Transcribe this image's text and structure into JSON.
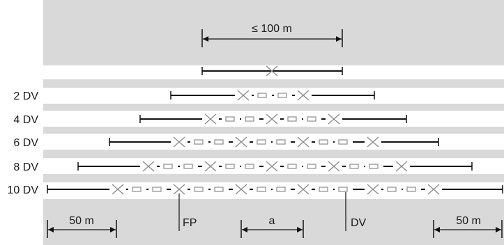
{
  "diagram": {
    "top_label": "≤ 100 m",
    "row_labels": [
      "2 DV",
      "4 DV",
      "6 DV",
      "8 DV",
      "10 DV"
    ],
    "bottom_labels": {
      "left_distance": "50 m",
      "fp": "FP",
      "a": "a",
      "dv": "DV",
      "right_distance": "50 m"
    },
    "colors": {
      "band": "#d9d9d9",
      "line": "#111111",
      "symbol": "#8c8c8c"
    }
  }
}
